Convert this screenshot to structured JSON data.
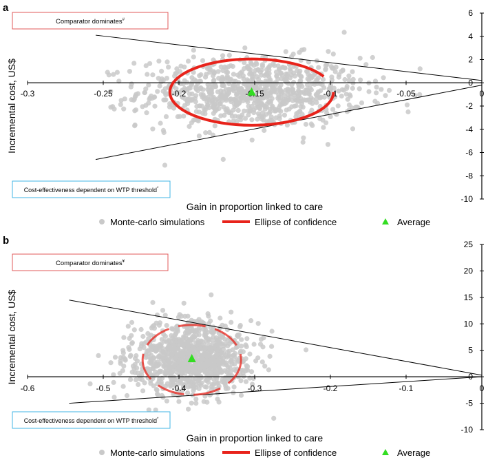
{
  "chart_data": [
    {
      "panel": "a",
      "type": "scatter",
      "xlabel": "Gain in proportion linked to care",
      "ylabel": "Incremental cost, US$",
      "xlim": [
        -0.3,
        0
      ],
      "ylim": [
        -10,
        6
      ],
      "x_ticks": [
        "-0.3",
        "-0.25",
        "-0.2",
        "-0.15",
        "-0.1",
        "-0.05",
        "0"
      ],
      "y_ticks": [
        "6",
        "4",
        "2",
        "0",
        "-2",
        "-4",
        "-6",
        "-8",
        "-10"
      ],
      "box_top": "Comparator dominates",
      "box_top_mark": "#",
      "box_bottom": "Cost-effectiveness dependent on WTP threshold",
      "box_bottom_mark": "*",
      "legend": [
        "Monte-carlo simulations",
        "Ellipse of confidence",
        "Average"
      ],
      "scatter_center": [
        -0.152,
        -0.8
      ],
      "scatter_spread": [
        0.037,
        1.5
      ],
      "scatter_count": 900,
      "average": [
        -0.152,
        -0.8
      ],
      "ellipse": {
        "center": [
          -0.152,
          -0.8
        ],
        "rx": 0.054,
        "ry": 2.85
      },
      "wtp_lines": [
        {
          "from": [
            -0.255,
            4.1
          ],
          "to": [
            0,
            0.2
          ]
        },
        {
          "from": [
            -0.255,
            -6.6
          ],
          "to": [
            0,
            -0.2
          ]
        }
      ],
      "colors": {
        "points": "#c9c9c9",
        "ellipse": "#e8231b",
        "average": "#33dd22",
        "box_top": "#e05a5a",
        "box_bottom": "#41b6e6"
      }
    },
    {
      "panel": "b",
      "type": "scatter",
      "xlabel": "Gain in proportion linked to care",
      "ylabel": "Incremental cost, US$",
      "xlim": [
        -0.6,
        0
      ],
      "ylim": [
        -10,
        25
      ],
      "x_ticks": [
        "-0.6",
        "-0.5",
        "-0.4",
        "-0.3",
        "-0.2",
        "-0.1",
        "0"
      ],
      "y_ticks": [
        "25",
        "20",
        "15",
        "10",
        "5",
        "0",
        "-5",
        "-10"
      ],
      "box_top": "Comparator dominates",
      "box_top_mark": "¥",
      "box_bottom": "Cost-effectiveness dependent on WTP threshold",
      "box_bottom_mark": "*",
      "legend": [
        "Monte-carlo simulations",
        "Ellipse of confidence",
        "Average"
      ],
      "scatter_center": [
        -0.383,
        3.5
      ],
      "scatter_spread": [
        0.04,
        3.4
      ],
      "scatter_count": 1000,
      "average": [
        -0.383,
        3.4
      ],
      "ellipse": {
        "center": [
          -0.383,
          3.2
        ],
        "rx": 0.065,
        "ry": 6.6
      },
      "wtp_lines": [
        {
          "from": [
            -0.545,
            14.5
          ],
          "to": [
            0,
            0.3
          ]
        },
        {
          "from": [
            -0.545,
            -5.0
          ],
          "to": [
            0,
            0.0
          ]
        }
      ],
      "colors": {
        "points": "#c9c9c9",
        "ellipse": "#e8231b",
        "average": "#33dd22",
        "box_top": "#e05a5a",
        "box_bottom": "#41b6e6"
      }
    }
  ]
}
